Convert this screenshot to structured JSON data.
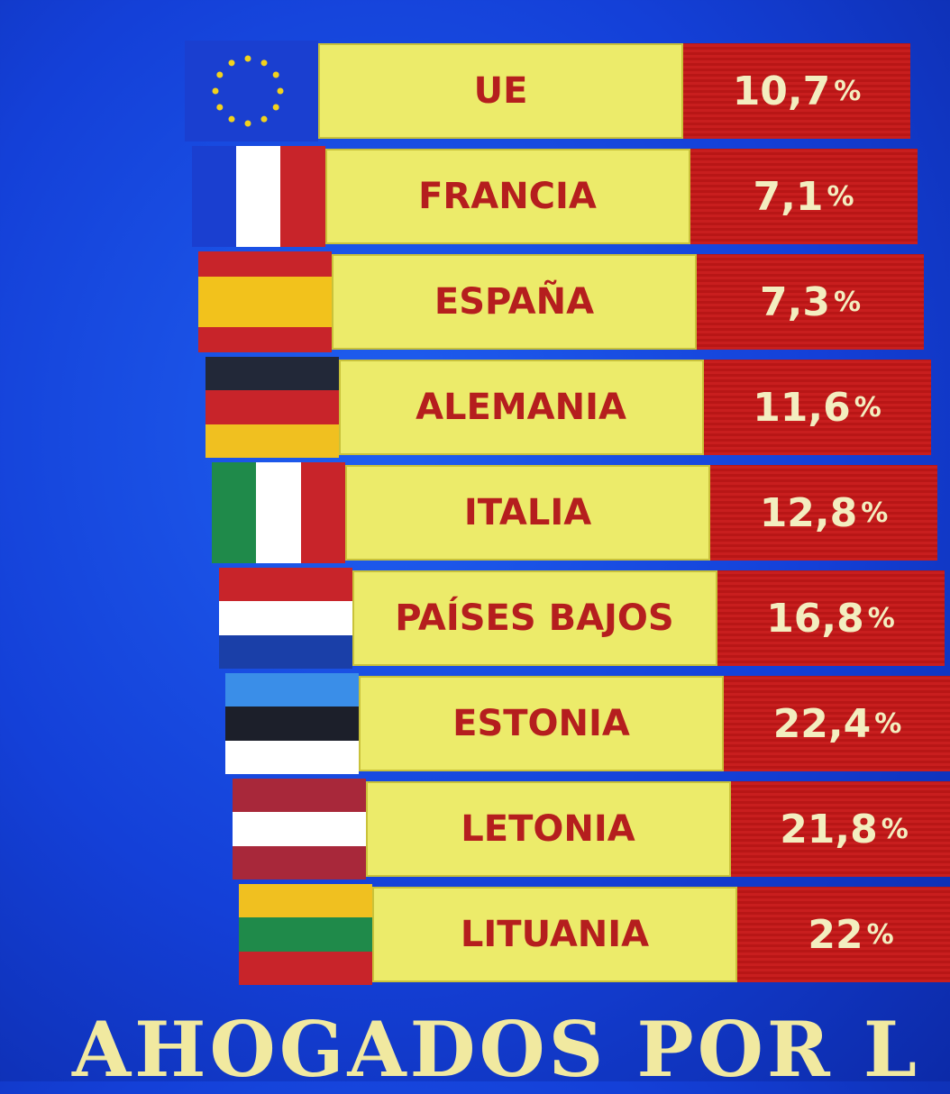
{
  "table": {
    "rows": [
      {
        "country": "UE",
        "value": "10,7",
        "unit": "%"
      },
      {
        "country": "FRANCIA",
        "value": "7,1",
        "unit": "%"
      },
      {
        "country": "ESPAÑA",
        "value": "7,3",
        "unit": "%"
      },
      {
        "country": "ALEMANIA",
        "value": "11,6",
        "unit": "%"
      },
      {
        "country": "ITALIA",
        "value": "12,8",
        "unit": "%"
      },
      {
        "country": "PAÍSES BAJOS",
        "value": "16,8",
        "unit": "%"
      },
      {
        "country": "ESTONIA",
        "value": "22,4",
        "unit": "%"
      },
      {
        "country": "LETONIA",
        "value": "21,8",
        "unit": "%"
      },
      {
        "country": "LITUANIA",
        "value": "22",
        "unit": "%"
      }
    ]
  },
  "footer": {
    "headline": "AHOGADOS POR L"
  }
}
